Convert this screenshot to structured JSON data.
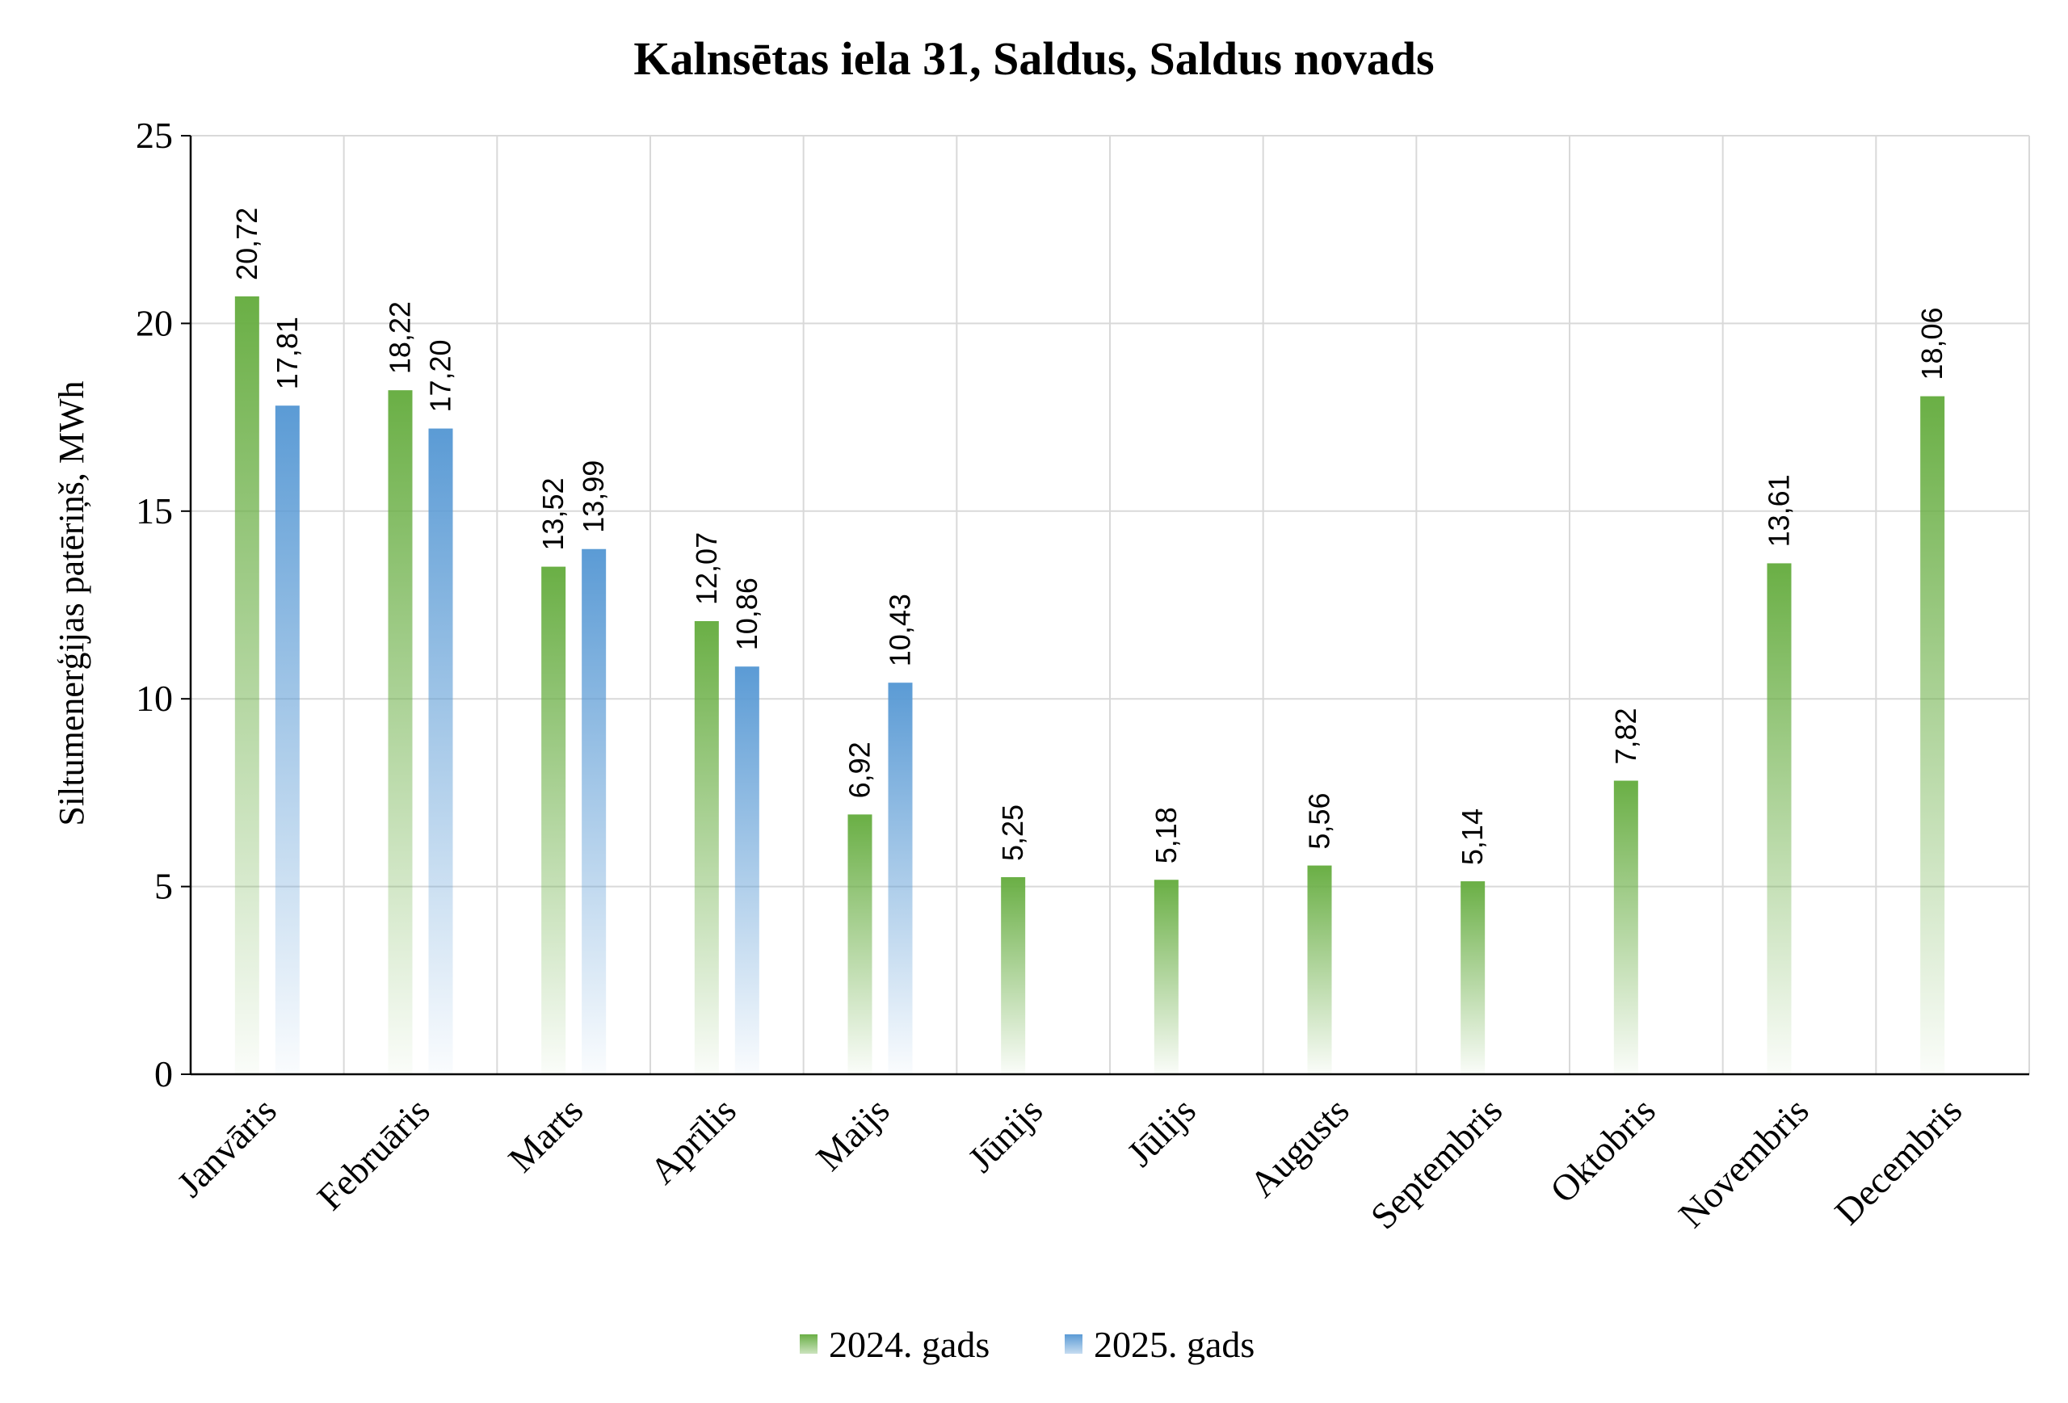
{
  "chart_data": {
    "type": "bar",
    "title": "Kalnsētas iela 31, Saldus, Saldus novads",
    "xlabel": "",
    "ylabel": "Siltumenerģijas patēriņš, MWh",
    "ylim": [
      0,
      25
    ],
    "yticks": [
      "0",
      "5",
      "10",
      "15",
      "20",
      "25"
    ],
    "grid": true,
    "legend_position": "bottom",
    "categories": [
      "Janvāris",
      "Februāris",
      "Marts",
      "Aprīlis",
      "Maijs",
      "Jūnijs",
      "Jūlijs",
      "Augusts",
      "Septembris",
      "Oktobris",
      "Novembris",
      "Decembris"
    ],
    "series": [
      {
        "name": "2024. gads",
        "color": "#6AAF45",
        "values": [
          20.72,
          18.22,
          13.52,
          12.07,
          6.92,
          5.25,
          5.18,
          5.56,
          5.14,
          7.82,
          13.61,
          18.06
        ],
        "labels": [
          "20,72",
          "18,22",
          "13,52",
          "12,07",
          "6,92",
          "5,25",
          "5,18",
          "5,56",
          "5,14",
          "7,82",
          "13,61",
          "18,06"
        ]
      },
      {
        "name": "2025. gads",
        "color": "#5B9BD5",
        "values": [
          17.81,
          17.2,
          13.99,
          10.86,
          10.43,
          null,
          null,
          null,
          null,
          null,
          null,
          null
        ],
        "labels": [
          "17,81",
          "17,20",
          "13,99",
          "10,86",
          "10,43",
          "",
          "",
          "",
          "",
          "",
          "",
          ""
        ]
      }
    ]
  }
}
